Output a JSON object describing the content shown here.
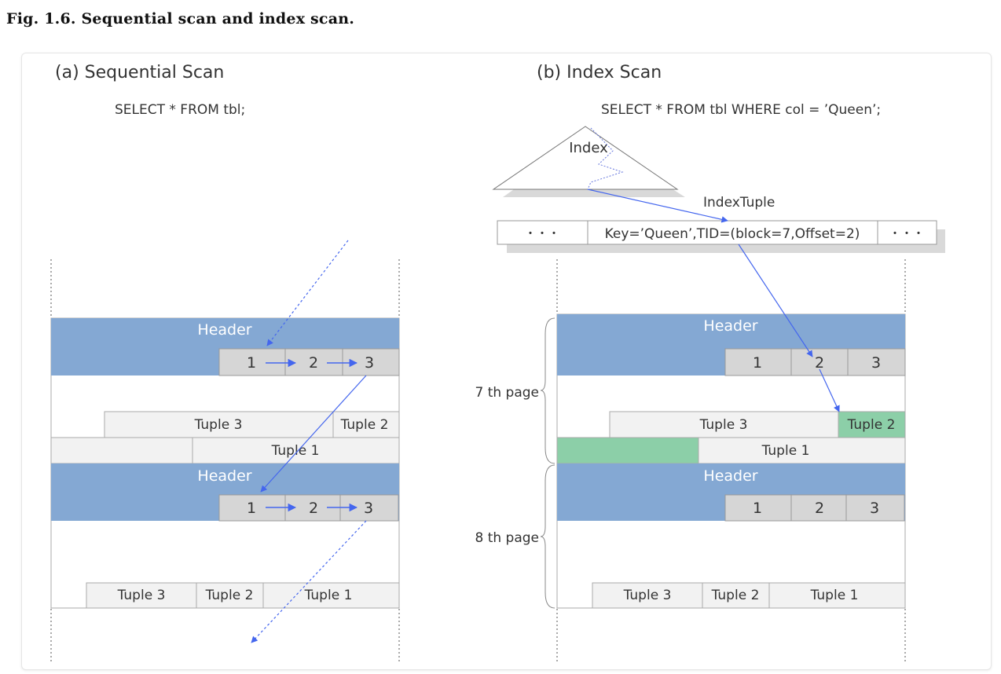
{
  "caption": "Fig. 1.6. Sequential scan and index scan.",
  "left_panel": {
    "title": "(a) Sequential Scan",
    "query": "SELECT * FROM tbl;",
    "pages": [
      {
        "header": "Header",
        "line_pointers": [
          "1",
          "2",
          "3"
        ],
        "tuples_row1": [
          "Tuple 3",
          "Tuple 2"
        ],
        "tuples_row2": [
          "Tuple 1"
        ]
      },
      {
        "header": "Header",
        "line_pointers": [
          "1",
          "2",
          "3"
        ],
        "tuples_row1": [
          "Tuple 3",
          "Tuple 2",
          "Tuple 1"
        ]
      }
    ]
  },
  "right_panel": {
    "title": "(b) Index Scan",
    "query": "SELECT * FROM tbl WHERE  col = ’Queen’;",
    "index_label": "Index",
    "index_tuple_label": "IndexTuple",
    "index_tuple": {
      "left": "・・・",
      "entry": "Key=’Queen’,TID=(block=7,Offset=2)",
      "right": "・・・"
    },
    "page_labels": [
      "7 th page",
      "8 th page"
    ],
    "pages": [
      {
        "header": "Header",
        "line_pointers": [
          "1",
          "2",
          "3"
        ],
        "tuples_row1": [
          "Tuple 3",
          "Tuple 2"
        ],
        "tuples_row2": [
          "Tuple 1"
        ]
      },
      {
        "header": "Header",
        "line_pointers": [
          "1",
          "2",
          "3"
        ],
        "tuples_row1": [
          "Tuple 3",
          "Tuple 2",
          "Tuple 1"
        ]
      }
    ]
  },
  "colors": {
    "header": "#84a8d3",
    "slot": "#d6d6d6",
    "tuple": "#f2f2f2",
    "highlight": "#8ccfa8",
    "arrow": "#4466ee"
  }
}
